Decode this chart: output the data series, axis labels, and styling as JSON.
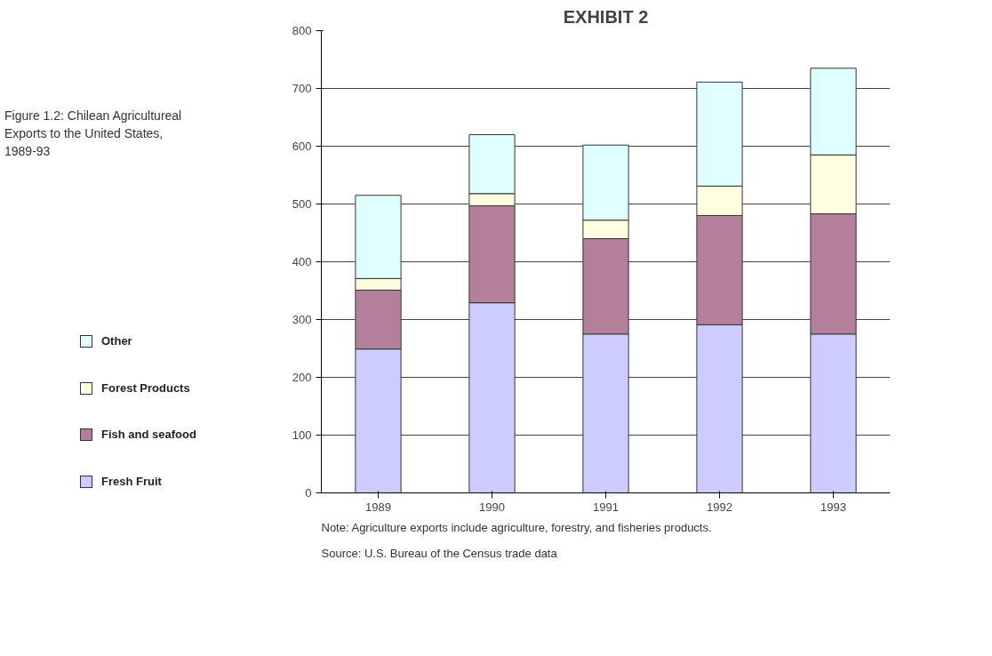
{
  "chart_data": {
    "type": "bar",
    "title": "EXHIBIT 2",
    "subtitle": "Figure 1.2: Chilean Agricultureal\nExports to the United States,\n1989-93",
    "categories": [
      "1989",
      "1990",
      "1991",
      "1992",
      "1993"
    ],
    "stacked": true,
    "series": [
      {
        "name": "Fresh Fruit",
        "color": "#ccccff",
        "values": [
          249,
          329,
          275,
          291,
          275
        ]
      },
      {
        "name": "Fish and seafood",
        "color": "#b47f9a",
        "values": [
          102,
          168,
          165,
          189,
          208
        ]
      },
      {
        "name": "Forest Products",
        "color": "#ffffe0",
        "values": [
          20,
          21,
          32,
          51,
          102
        ]
      },
      {
        "name": "Other",
        "color": "#e0ffff",
        "values": [
          144,
          102,
          130,
          180,
          150
        ]
      }
    ],
    "ylim": [
      0,
      800
    ],
    "yticks": [
      0,
      100,
      200,
      300,
      400,
      500,
      600,
      700,
      800
    ],
    "grid": "y",
    "legend": "left",
    "annotations": [
      "Note: Agriculture exports include agriculture, forestry, and fisheries products.",
      "Source: U.S. Bureau of the Census trade data"
    ]
  }
}
